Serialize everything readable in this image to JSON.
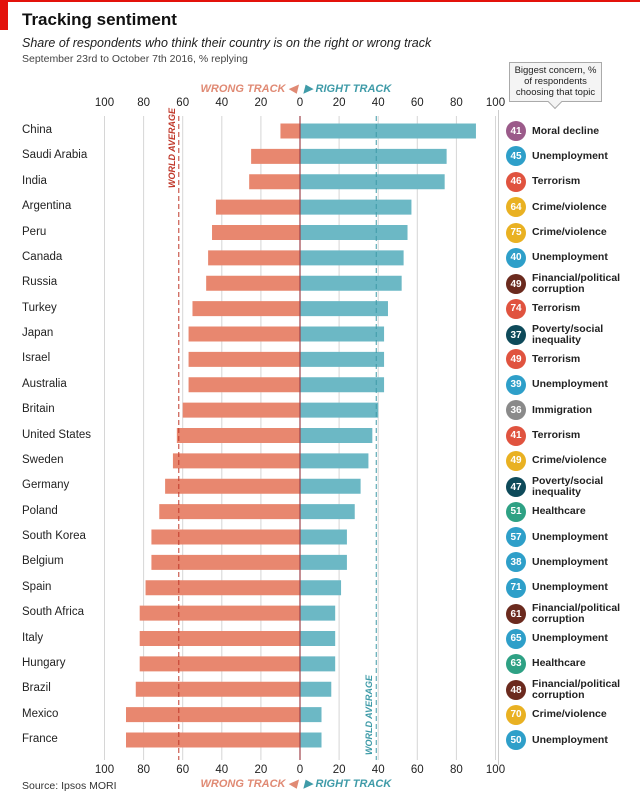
{
  "header": {
    "title": "Tracking sentiment",
    "subtitle": "Share of respondents who think their country is on the right or wrong track",
    "date_note": "September 23rd to October 7th 2016, % replying",
    "callout": "Biggest concern, % of respondents choosing that topic"
  },
  "labels": {
    "wrong": "WRONG TRACK",
    "right": "RIGHT TRACK",
    "world_average": "WORLD AVERAGE"
  },
  "source": "Source: Ipsos MORI",
  "colors": {
    "wrong": "#E8876F",
    "right": "#6CB8C5",
    "Moral decline": "#9B5B8A",
    "Unemployment": "#2E9FC9",
    "Terrorism": "#E0533F",
    "Crime/violence": "#E9B122",
    "Financial/political corruption": "#6B2A1E",
    "Poverty/social inequality": "#0E4A5A",
    "Immigration": "#8A8A8A",
    "Healthcare": "#2EA184"
  },
  "chart_data": {
    "type": "bar",
    "orientation": "horizontal-diverging",
    "title": "Tracking sentiment",
    "categories": [
      "China",
      "Saudi Arabia",
      "India",
      "Argentina",
      "Peru",
      "Canada",
      "Russia",
      "Turkey",
      "Japan",
      "Israel",
      "Australia",
      "Britain",
      "United States",
      "Sweden",
      "Germany",
      "Poland",
      "South Korea",
      "Belgium",
      "Spain",
      "South Africa",
      "Italy",
      "Hungary",
      "Brazil",
      "Mexico",
      "France"
    ],
    "series": [
      {
        "name": "WRONG TRACK",
        "values": [
          10,
          25,
          26,
          43,
          45,
          47,
          48,
          55,
          57,
          57,
          57,
          60,
          63,
          65,
          69,
          72,
          76,
          76,
          79,
          82,
          82,
          82,
          84,
          89,
          89
        ]
      },
      {
        "name": "RIGHT TRACK",
        "values": [
          90,
          75,
          74,
          57,
          55,
          53,
          52,
          45,
          43,
          43,
          43,
          40,
          37,
          35,
          31,
          28,
          24,
          24,
          21,
          18,
          18,
          18,
          16,
          11,
          11
        ]
      }
    ],
    "world_average": {
      "wrong": 62,
      "right": 39
    },
    "xlim": [
      -100,
      100
    ],
    "xticks": [
      "100",
      "80",
      "60",
      "40",
      "20",
      "0",
      "20",
      "40",
      "60",
      "80",
      "100"
    ],
    "grid": true,
    "concerns": [
      {
        "value": "41",
        "topic": "Moral decline"
      },
      {
        "value": "45",
        "topic": "Unemployment"
      },
      {
        "value": "46",
        "topic": "Terrorism"
      },
      {
        "value": "64",
        "topic": "Crime/violence"
      },
      {
        "value": "75",
        "topic": "Crime/violence"
      },
      {
        "value": "40",
        "topic": "Unemployment"
      },
      {
        "value": "49",
        "topic": "Financial/political corruption"
      },
      {
        "value": "74",
        "topic": "Terrorism"
      },
      {
        "value": "37",
        "topic": "Poverty/social inequality"
      },
      {
        "value": "49",
        "topic": "Terrorism"
      },
      {
        "value": "39",
        "topic": "Unemployment"
      },
      {
        "value": "36",
        "topic": "Immigration"
      },
      {
        "value": "41",
        "topic": "Terrorism"
      },
      {
        "value": "49",
        "topic": "Crime/violence"
      },
      {
        "value": "47",
        "topic": "Poverty/social inequality"
      },
      {
        "value": "51",
        "topic": "Healthcare"
      },
      {
        "value": "57",
        "topic": "Unemployment"
      },
      {
        "value": "38",
        "topic": "Unemployment"
      },
      {
        "value": "71",
        "topic": "Unemployment"
      },
      {
        "value": "61",
        "topic": "Financial/political corruption"
      },
      {
        "value": "65",
        "topic": "Unemployment"
      },
      {
        "value": "63",
        "topic": "Healthcare"
      },
      {
        "value": "48",
        "topic": "Financial/political corruption"
      },
      {
        "value": "70",
        "topic": "Crime/violence"
      },
      {
        "value": "50",
        "topic": "Unemployment"
      }
    ]
  }
}
